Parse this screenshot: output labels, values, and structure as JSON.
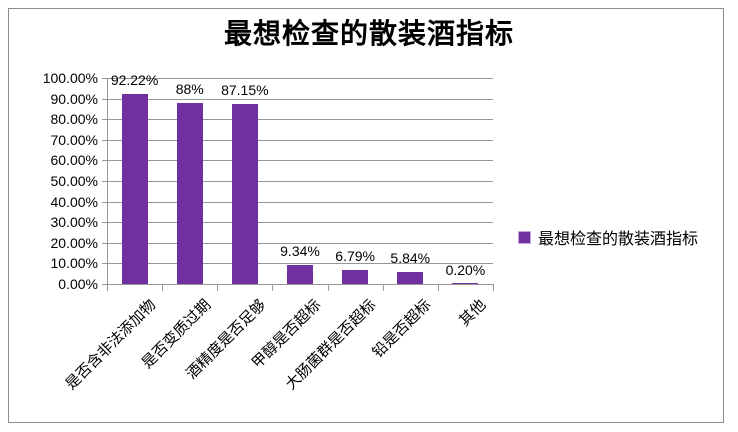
{
  "title": "最想检查的散装酒指标",
  "legend": {
    "label": "最想检查的散装酒指标",
    "swatch_color": "#7030A0",
    "swatch_border_color": "#C5A3DD"
  },
  "colors": {
    "bar": "#7030A0",
    "gridline": "#969696",
    "axis": "#969696",
    "frame": "#8C8C8C",
    "text": "#000000"
  },
  "chart_data": {
    "type": "bar",
    "title": "最想检查的散装酒指标",
    "categories": [
      "是否含非法添加物",
      "是否变质过期",
      "酒精度是否足够",
      "甲醇是否超标",
      "大肠菌群是否超标",
      "铅是否超标",
      "其他"
    ],
    "series": [
      {
        "name": "最想检查的散装酒指标",
        "values": [
          92.22,
          88,
          87.15,
          9.34,
          6.79,
          5.84,
          0.2
        ]
      }
    ],
    "data_labels": [
      "92.22%",
      "88%",
      "87.15%",
      "9.34%",
      "6.79%",
      "5.84%",
      "0.20%"
    ],
    "xlabel": "",
    "ylabel": "",
    "ylim": [
      0,
      100
    ],
    "ytick_step": 10,
    "ytick_labels": [
      "0.00%",
      "10.00%",
      "20.00%",
      "30.00%",
      "40.00%",
      "50.00%",
      "60.00%",
      "70.00%",
      "80.00%",
      "90.00%",
      "100.00%"
    ],
    "grid": true,
    "legend_position": "right",
    "bar_color": "#7030A0"
  }
}
